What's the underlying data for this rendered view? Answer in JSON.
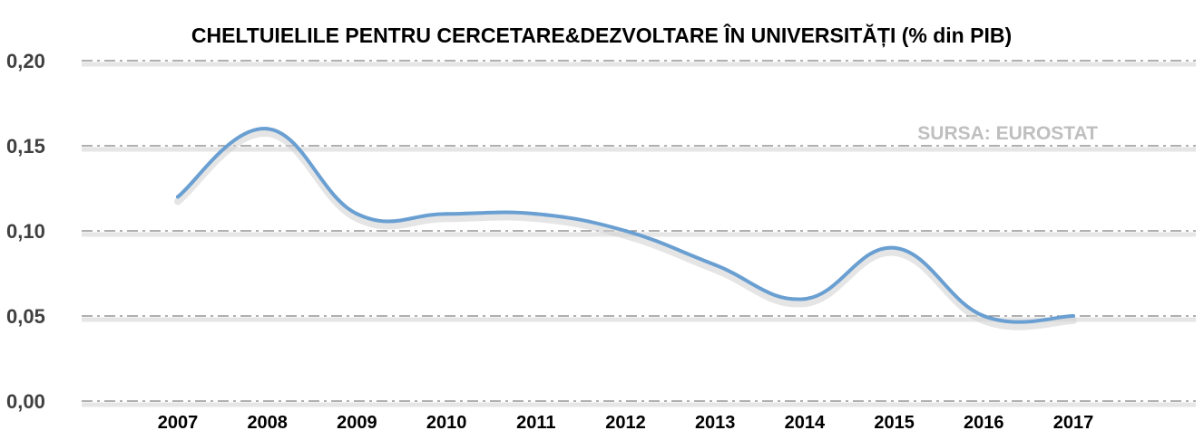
{
  "chart_data": {
    "type": "line",
    "title": "CHELTUIELILE PENTRU CERCETARE&DEZVOLTARE ÎN UNIVERSITĂȚI (% din PIB)",
    "source": "SURSA: EUROSTAT",
    "xlabel": "",
    "ylabel": "",
    "categories": [
      "2007",
      "2008",
      "2009",
      "2010",
      "2011",
      "2012",
      "2013",
      "2014",
      "2015",
      "2016",
      "2017"
    ],
    "series": [
      {
        "values": [
          0.12,
          0.16,
          0.11,
          0.11,
          0.11,
          0.1,
          0.08,
          0.06,
          0.09,
          0.05,
          0.05
        ]
      }
    ],
    "ylim": [
      0,
      0.2
    ],
    "yticks": [
      "0,00",
      "0,05",
      "0,10",
      "0,15",
      "0,20"
    ],
    "grid": true,
    "legend": "none",
    "line_color": "#6a9fd2"
  }
}
